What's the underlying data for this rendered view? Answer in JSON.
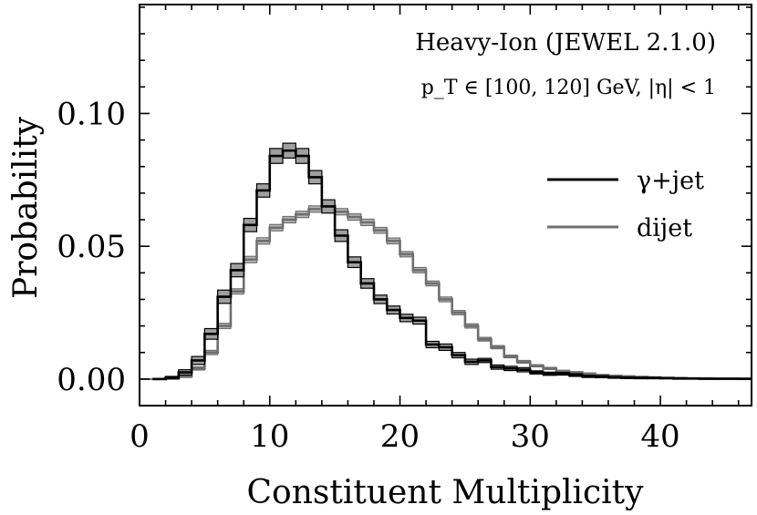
{
  "chart_data": {
    "type": "step",
    "xlabel": "Constituent Multiplicity",
    "ylabel": "Probability",
    "xlim": [
      0,
      47
    ],
    "ylim": [
      -0.01,
      0.141
    ],
    "xticks": [
      0,
      10,
      20,
      30,
      40
    ],
    "xtick_labels": [
      "0",
      "10",
      "20",
      "30",
      "40"
    ],
    "yticks": [
      0.0,
      0.05,
      0.1
    ],
    "ytick_labels": [
      "0.00",
      "0.05",
      "0.10"
    ],
    "annotation_line1": "Heavy-Ion (JEWEL 2.1.0)",
    "annotation_line2": "p_T ∈ [100, 120] GeV, |η| < 1",
    "legend_position": "right",
    "bin_edges": [
      1,
      2,
      3,
      4,
      5,
      6,
      7,
      8,
      9,
      10,
      11,
      12,
      13,
      14,
      15,
      16,
      17,
      18,
      19,
      20,
      21,
      22,
      23,
      24,
      25,
      26,
      27,
      28,
      29,
      30,
      31,
      32,
      33,
      34,
      35,
      36,
      37,
      38,
      39,
      40,
      41,
      42,
      43,
      44,
      45,
      46,
      47
    ],
    "series": [
      {
        "name": "γ+jet",
        "color": "#000000",
        "band_color": "#a0a0a0",
        "values": [
          0.0,
          0.0005,
          0.0025,
          0.007,
          0.017,
          0.031,
          0.041,
          0.058,
          0.071,
          0.084,
          0.086,
          0.084,
          0.076,
          0.065,
          0.054,
          0.044,
          0.036,
          0.03,
          0.026,
          0.023,
          0.022,
          0.013,
          0.012,
          0.009,
          0.0065,
          0.007,
          0.0045,
          0.004,
          0.0035,
          0.0025,
          0.002,
          0.002,
          0.0015,
          0.001,
          0.0009,
          0.0006,
          0.0005,
          0.0004,
          0.0004,
          0.0003,
          0.0002,
          0.0002,
          0.0001,
          0.0001,
          0.0001,
          0.0001
        ],
        "errors": [
          0.0,
          0.0005,
          0.001,
          0.0015,
          0.002,
          0.0025,
          0.0025,
          0.0025,
          0.0025,
          0.0028,
          0.0028,
          0.0028,
          0.0025,
          0.0025,
          0.0022,
          0.002,
          0.0018,
          0.0016,
          0.0015,
          0.0014,
          0.0013,
          0.0012,
          0.0012,
          0.001,
          0.001,
          0.0008,
          0.0008,
          0.0008,
          0.0008,
          0.0006,
          0.0006,
          0.0005,
          0.0005,
          0.0004,
          0.0004,
          0.0003,
          0.0003,
          0.0003,
          0.0003,
          0.0002,
          0.0002,
          0.0002,
          0.0001,
          0.0001,
          0.0001,
          0.0001
        ]
      },
      {
        "name": "dijet",
        "color": "#6e6e6e",
        "band_color": "#b8b8b8",
        "values": [
          0.0,
          0.0003,
          0.001,
          0.004,
          0.01,
          0.02,
          0.033,
          0.045,
          0.052,
          0.057,
          0.06,
          0.062,
          0.064,
          0.065,
          0.063,
          0.061,
          0.059,
          0.056,
          0.052,
          0.047,
          0.041,
          0.036,
          0.03,
          0.025,
          0.02,
          0.015,
          0.012,
          0.0085,
          0.0065,
          0.005,
          0.004,
          0.003,
          0.0025,
          0.002,
          0.0015,
          0.0012,
          0.001,
          0.0008,
          0.0006,
          0.0005,
          0.0004,
          0.0003,
          0.0003,
          0.0002,
          0.0002,
          0.0001
        ],
        "errors": [
          0.0,
          0.0002,
          0.0004,
          0.0006,
          0.0008,
          0.001,
          0.001,
          0.0012,
          0.0012,
          0.0012,
          0.0012,
          0.0012,
          0.0012,
          0.0012,
          0.0012,
          0.0012,
          0.0012,
          0.0011,
          0.0011,
          0.001,
          0.001,
          0.0009,
          0.0009,
          0.0008,
          0.0008,
          0.0007,
          0.0006,
          0.0005,
          0.0005,
          0.0004,
          0.0004,
          0.0003,
          0.0003,
          0.0003,
          0.0002,
          0.0002,
          0.0002,
          0.0002,
          0.0001,
          0.0001,
          0.0001,
          0.0001,
          0.0001,
          0.0001,
          0.0001,
          0.0001
        ]
      }
    ]
  }
}
